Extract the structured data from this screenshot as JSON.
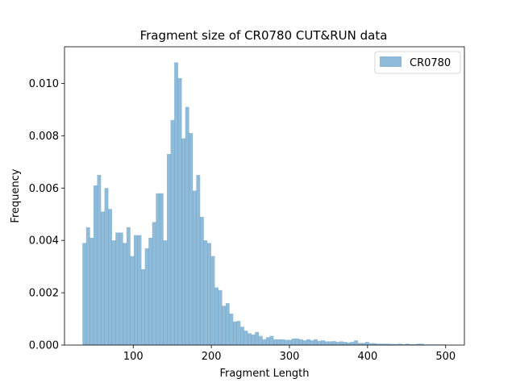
{
  "chart_data": {
    "type": "bar",
    "title": "Fragment size of CR0780 CUT&RUN data",
    "xlabel": "Fragment Length",
    "ylabel": "Frequency",
    "xlim": [
      12,
      524
    ],
    "ylim": [
      0,
      0.0114
    ],
    "xticks": [
      100,
      200,
      300,
      400,
      500
    ],
    "yticks": [
      0.0,
      0.002,
      0.004,
      0.006,
      0.008,
      0.01
    ],
    "ytick_labels": [
      "0.000",
      "0.002",
      "0.004",
      "0.006",
      "0.008",
      "0.010"
    ],
    "bin_width": 4.7,
    "bin_start": 35,
    "grid": false,
    "legend_position": "top-right",
    "series": [
      {
        "name": "CR0780",
        "color": "#1f77b4",
        "alpha": 0.5,
        "values": [
          0.0039,
          0.0045,
          0.0041,
          0.0061,
          0.0065,
          0.0051,
          0.006,
          0.0052,
          0.004,
          0.0043,
          0.0043,
          0.0039,
          0.0045,
          0.0034,
          0.0042,
          0.0042,
          0.0029,
          0.0037,
          0.0041,
          0.0047,
          0.0058,
          0.0058,
          0.004,
          0.0073,
          0.0086,
          0.0108,
          0.0102,
          0.0079,
          0.0091,
          0.0081,
          0.0059,
          0.0065,
          0.0049,
          0.004,
          0.0039,
          0.0034,
          0.0022,
          0.0021,
          0.0015,
          0.0016,
          0.0012,
          0.0009,
          0.00092,
          0.0007,
          0.00055,
          0.00045,
          0.0004,
          0.0005,
          0.00035,
          0.00022,
          0.0003,
          0.00035,
          0.00022,
          0.00022,
          0.00022,
          0.0002,
          0.0002,
          0.00025,
          0.00025,
          0.00022,
          0.00018,
          0.00022,
          0.00018,
          0.00022,
          0.00016,
          0.00018,
          0.00014,
          0.00014,
          0.00015,
          0.00012,
          0.00014,
          0.00012,
          0.0001,
          0.00012,
          0.00018,
          8e-05,
          8e-05,
          0.00012,
          7e-05,
          7e-05,
          5e-05,
          5e-05,
          5e-05,
          5e-05,
          4e-05,
          4e-05,
          5e-05,
          3e-05,
          5e-05,
          3e-05,
          3e-05,
          5e-05,
          5e-05,
          2e-05,
          2e-05,
          2e-05,
          2e-05,
          2e-05,
          2e-05
        ]
      }
    ]
  }
}
